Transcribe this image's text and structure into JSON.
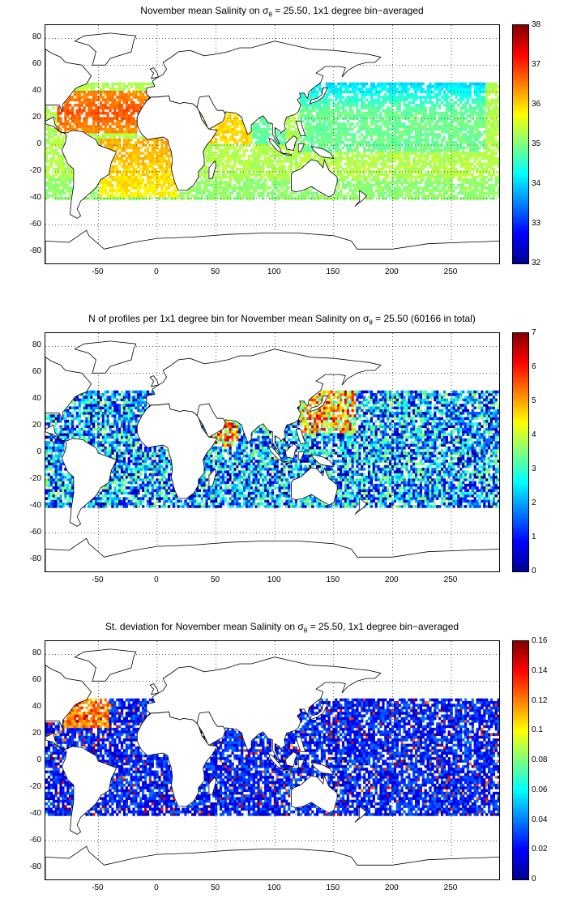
{
  "map_common": {
    "x_ticks": [
      -50,
      0,
      50,
      100,
      150,
      200,
      250
    ],
    "y_ticks": [
      80,
      60,
      40,
      20,
      0,
      -20,
      -40,
      -60,
      -80
    ],
    "lon_range": [
      -95,
      292
    ],
    "lat_range": [
      -90,
      90
    ],
    "grid": "dotted"
  },
  "panels": [
    {
      "title_pre": "November mean Salinity on ",
      "title_sigma": "σ",
      "title_sub": "θ",
      "title_post": " = 25.50, 1x1 degree bin−averaged",
      "colorbar": {
        "min": 32,
        "max": 38,
        "ticks": [
          38,
          37,
          36,
          35,
          34,
          33,
          32
        ],
        "colormap": "jet"
      }
    },
    {
      "title_pre": "N of profiles per 1x1 degree bin for November mean Salinity on ",
      "title_sigma": "σ",
      "title_sub": "θ",
      "title_post": " = 25.50 (60166 in total)",
      "colorbar": {
        "min": 0,
        "max": 7,
        "ticks": [
          7,
          6,
          5,
          4,
          3,
          2,
          1,
          0
        ],
        "colormap": "jet"
      }
    },
    {
      "title_pre": "St. deviation for November mean Salinity on ",
      "title_sigma": "σ",
      "title_sub": "θ",
      "title_post": " = 25.50, 1x1 degree bin−averaged",
      "colorbar": {
        "min": 0,
        "max": 0.16,
        "ticks": [
          0.16,
          0.14,
          0.12,
          0.1,
          0.08,
          0.06,
          0.04,
          0.02,
          0
        ],
        "colormap": "jet"
      }
    }
  ],
  "colors": {
    "land": "#ffffff",
    "coast": "#000000"
  }
}
